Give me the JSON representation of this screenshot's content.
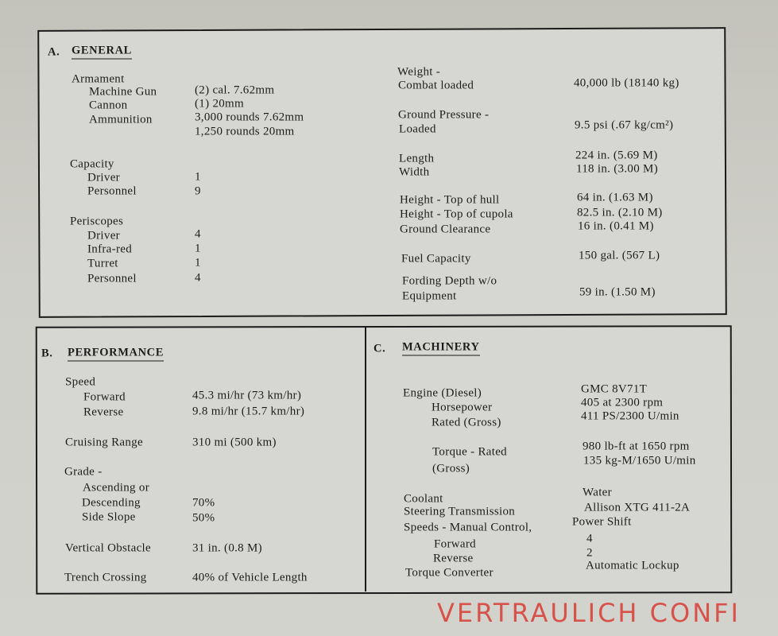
{
  "general": {
    "letter": "A.",
    "title": "GENERAL",
    "left": [
      {
        "label": "Armament",
        "value": ""
      },
      {
        "label": "Machine Gun",
        "value": "(2) cal. 7.62mm"
      },
      {
        "label": "Cannon",
        "value": "(1) 20mm"
      },
      {
        "label": "Ammunition",
        "value": "3,000 rounds 7.62mm"
      },
      {
        "label": "",
        "value": "1,250 rounds 20mm"
      },
      {
        "label": "Capacity",
        "value": ""
      },
      {
        "label": "Driver",
        "value": "1"
      },
      {
        "label": "Personnel",
        "value": "9"
      },
      {
        "label": "Periscopes",
        "value": ""
      },
      {
        "label": "Driver",
        "value": "4"
      },
      {
        "label": "Infra-red",
        "value": "1"
      },
      {
        "label": "Turret",
        "value": "1"
      },
      {
        "label": "Personnel",
        "value": "4"
      }
    ],
    "right": [
      {
        "label": "Weight -",
        "value": ""
      },
      {
        "label": "Combat loaded",
        "value": "40,000 lb (18140 kg)"
      },
      {
        "label": "Ground Pressure -",
        "value": ""
      },
      {
        "label": "Loaded",
        "value": "9.5 psi (.67 kg/cm²)"
      },
      {
        "label": "Length",
        "value": "224 in. (5.69 M)"
      },
      {
        "label": "Width",
        "value": "118 in. (3.00 M)"
      },
      {
        "label": "Height - Top of hull",
        "value": "64 in. (1.63 M)"
      },
      {
        "label": "Height - Top of cupola",
        "value": "82.5 in. (2.10 M)"
      },
      {
        "label": "Ground Clearance",
        "value": "16 in. (0.41 M)"
      },
      {
        "label": "Fuel Capacity",
        "value": "150 gal. (567 L)"
      },
      {
        "label": "Fording Depth w/o",
        "value": ""
      },
      {
        "label": "Equipment",
        "value": "59 in. (1.50 M)"
      }
    ]
  },
  "performance": {
    "letter": "B.",
    "title": "PERFORMANCE",
    "rows": [
      {
        "label": "Speed",
        "value": ""
      },
      {
        "label": "Forward",
        "value": "45.3 mi/hr (73 km/hr)"
      },
      {
        "label": "Reverse",
        "value": "9.8 mi/hr (15.7 km/hr)"
      },
      {
        "label": "Cruising Range",
        "value": "310 mi (500 km)"
      },
      {
        "label": "Grade -",
        "value": ""
      },
      {
        "label": "Ascending or",
        "value": ""
      },
      {
        "label": "Descending",
        "value": "70%"
      },
      {
        "label": "Side Slope",
        "value": "50%"
      },
      {
        "label": "Vertical Obstacle",
        "value": "31 in. (0.8 M)"
      },
      {
        "label": "Trench Crossing",
        "value": "40% of Vehicle Length"
      }
    ]
  },
  "machinery": {
    "letter": "C.",
    "title": "MACHINERY",
    "rows": [
      {
        "label": "Engine (Diesel)",
        "value": "GMC 8V71T"
      },
      {
        "label": "Horsepower",
        "value": "405 at 2300 rpm"
      },
      {
        "label": "Rated (Gross)",
        "value": "411 PS/2300 U/min"
      },
      {
        "label": "Torque - Rated",
        "value": "980 lb-ft at 1650 rpm"
      },
      {
        "label": "(Gross)",
        "value": "135 kg-M/1650 U/min"
      },
      {
        "label": "Coolant",
        "value": "Water"
      },
      {
        "label": "Steering Transmission",
        "value": "Allison XTG 411-2A"
      },
      {
        "label": "Speeds - Manual Control,",
        "value": "Power Shift"
      },
      {
        "label": "Forward",
        "value": "4"
      },
      {
        "label": "Reverse",
        "value": "2"
      },
      {
        "label": "Torque Converter",
        "value": "Automatic Lockup"
      }
    ]
  },
  "stamp": {
    "text": "VERTRAULICH   CONFI",
    "color": "#d8453c"
  }
}
